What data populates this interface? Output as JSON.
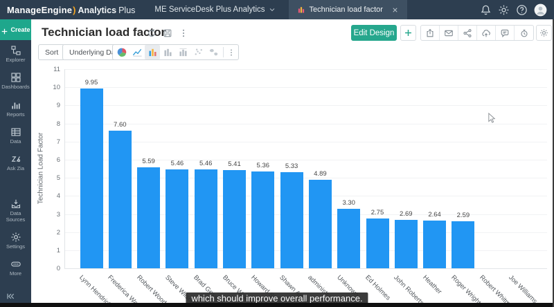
{
  "topbar": {
    "brand": "ManageEngine",
    "product": "Analytics",
    "product_suffix": "Plus",
    "workspace": "ME ServiceDesk Plus Analytics",
    "tab_title": "Technician load factor",
    "icons": [
      "notification-bell-icon",
      "settings-gear-icon",
      "help-icon",
      "user-avatar"
    ]
  },
  "sidebar": {
    "create_label": "Create",
    "items": [
      {
        "label": "Explorer",
        "icon": "explorer",
        "gap": false
      },
      {
        "label": "Dashboards",
        "icon": "dashboards",
        "gap": false
      },
      {
        "label": "Reports",
        "icon": "reports",
        "gap": false
      },
      {
        "label": "Data",
        "icon": "data",
        "gap": false
      },
      {
        "label": "Ask Zia",
        "icon": "zia",
        "gap": false
      },
      {
        "label": "Data Sources",
        "icon": "datasources",
        "gap": true
      },
      {
        "label": "Settings",
        "icon": "gear",
        "gap": false
      },
      {
        "label": "More",
        "icon": "more",
        "gap": false
      }
    ]
  },
  "header": {
    "title": "Technician load factor",
    "title_icons": [
      "refresh",
      "save",
      "kebab"
    ],
    "edit_design_label": "Edit Design",
    "actions": [
      {
        "name": "export-button",
        "icon": "export"
      },
      {
        "name": "email-button",
        "icon": "mail"
      },
      {
        "name": "share-button",
        "icon": "share"
      },
      {
        "name": "publish-button",
        "icon": "cloudup"
      },
      {
        "name": "comment-button",
        "icon": "comment"
      },
      {
        "name": "alert-button",
        "icon": "alarm"
      }
    ]
  },
  "toolbar": {
    "sort_label": "Sort",
    "underlying_label": "Underlying Data",
    "chart_types": [
      {
        "name": "pie-chart-icon",
        "icon": "pie",
        "active": false
      },
      {
        "name": "line-chart-icon",
        "icon": "linechart",
        "active": false
      },
      {
        "name": "bar-chart-icon",
        "icon": "barchart",
        "active": true
      },
      {
        "name": "stacked-bar-icon",
        "icon": "barchart2",
        "active": false
      },
      {
        "name": "grouped-bar-icon",
        "icon": "barchart3",
        "active": false
      },
      {
        "name": "scatter-chart-icon",
        "icon": "scatter",
        "active": false
      },
      {
        "name": "map-chart-icon",
        "icon": "mapchart",
        "active": false
      }
    ]
  },
  "chart_data": {
    "type": "bar",
    "title": "Technician load factor",
    "xlabel": "",
    "ylabel": "Technician Load Factor",
    "ylim": [
      0,
      11
    ],
    "ytick_step": 1,
    "grid": true,
    "bar_color": "#2196f3",
    "categories": [
      "Lynn Hendricks",
      "Frederica Watson",
      "Robert Woodman",
      "Steve Wilson",
      "Brad Gessup",
      "Bruce Waters",
      "Howard Stern",
      "Shawn Adams",
      "administrator",
      "Unknown",
      "Ed Holmes",
      "John Roberts",
      "Heather",
      "Roger Wright",
      "Robert Whitman",
      "Joe Williams"
    ],
    "values": [
      9.95,
      7.6,
      5.59,
      5.46,
      5.46,
      5.41,
      5.36,
      5.33,
      4.89,
      3.3,
      2.75,
      2.69,
      2.64,
      2.59,
      null,
      null
    ]
  },
  "caption": "which should improve overall performance.",
  "colors": {
    "topbar_bg": "#2d3e50",
    "accent_teal": "#1ea78c",
    "bar_blue": "#2196f3"
  }
}
